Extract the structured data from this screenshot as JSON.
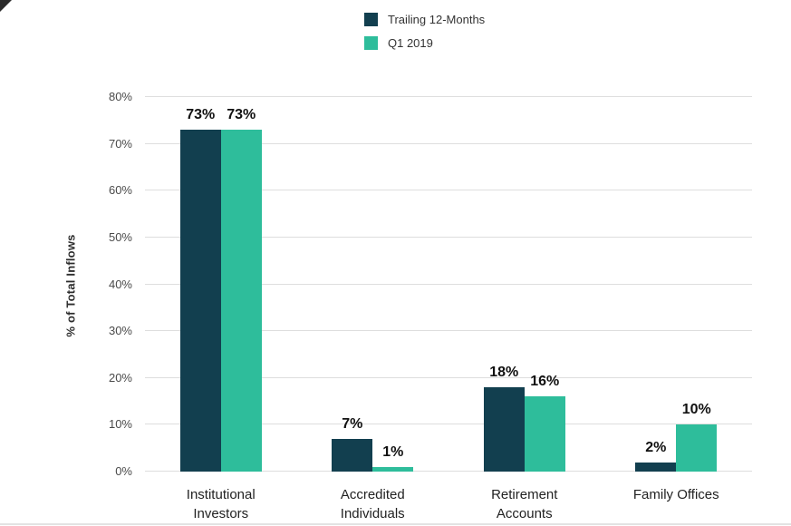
{
  "chart_data": {
    "type": "bar",
    "title": "",
    "categories": [
      "Institutional Investors",
      "Accredited Individuals",
      "Retirement Accounts",
      "Family Offices"
    ],
    "series": [
      {
        "name": "Trailing 12-Months",
        "color": "#123f4f",
        "values": [
          73,
          7,
          18,
          2
        ],
        "labels": [
          "73%",
          "7%",
          "18%",
          "2%"
        ]
      },
      {
        "name": "Q1 2019",
        "color": "#2ebd9b",
        "values": [
          73,
          1,
          16,
          10
        ],
        "labels": [
          "73%",
          "1%",
          "16%",
          "10%"
        ]
      }
    ],
    "xlabel": "",
    "ylabel": "% of Total Inflows",
    "ylim": [
      0,
      80
    ],
    "ytick_step": 10,
    "ytick_suffix": "%",
    "grid": true,
    "legend_position": "top"
  }
}
